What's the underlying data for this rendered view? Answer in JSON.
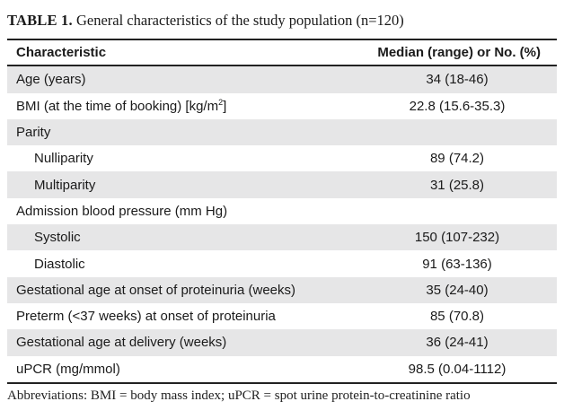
{
  "caption": {
    "label": "TABLE 1.",
    "title": "General characteristics of the study population (n=120)"
  },
  "table": {
    "headers": [
      "Characteristic",
      "Median (range) or No. (%)"
    ],
    "rows": [
      {
        "label": "Age (years)",
        "value": "34 (18-46)",
        "indent": false,
        "shaded": true
      },
      {
        "label": "BMI (at the time of booking) [kg/m2]",
        "label_pre": "BMI (at the time of booking) [kg/m",
        "label_sup": "2",
        "label_post": "]",
        "value": "22.8 (15.6-35.3)",
        "indent": false,
        "shaded": false
      },
      {
        "label": "Parity",
        "value": "",
        "indent": false,
        "shaded": true
      },
      {
        "label": "Nulliparity",
        "value": "89 (74.2)",
        "indent": true,
        "shaded": false
      },
      {
        "label": "Multiparity",
        "value": "31 (25.8)",
        "indent": true,
        "shaded": true
      },
      {
        "label": "Admission blood pressure (mm Hg)",
        "value": "",
        "indent": false,
        "shaded": false
      },
      {
        "label": "Systolic",
        "value": "150 (107-232)",
        "indent": true,
        "shaded": true
      },
      {
        "label": "Diastolic",
        "value": "91 (63-136)",
        "indent": true,
        "shaded": false
      },
      {
        "label": "Gestational age at onset of proteinuria (weeks)",
        "value": "35 (24-40)",
        "indent": false,
        "shaded": true
      },
      {
        "label": "Preterm (<37 weeks) at onset of proteinuria",
        "value": "85 (70.8)",
        "indent": false,
        "shaded": false
      },
      {
        "label": "Gestational age at delivery (weeks)",
        "value": "36 (24-41)",
        "indent": false,
        "shaded": true
      },
      {
        "label": "uPCR (mg/mmol)",
        "value": "98.5 (0.04-1112)",
        "indent": false,
        "shaded": false
      }
    ]
  },
  "footnote": "Abbreviations: BMI = body mass index; uPCR = spot urine protein-to-creatinine ratio"
}
